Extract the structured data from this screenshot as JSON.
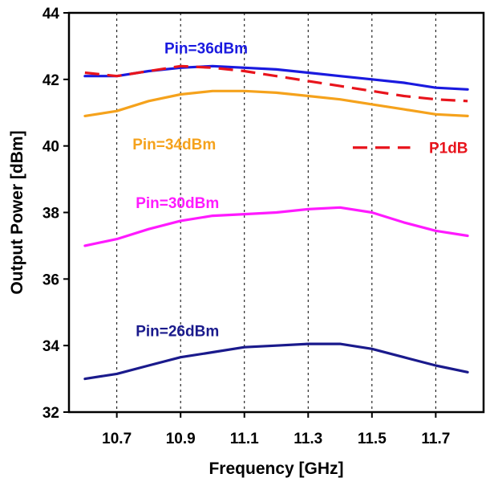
{
  "chart_data": {
    "type": "line",
    "title": "",
    "xlabel": "Frequency [GHz]",
    "ylabel": "Output Power [dBm]",
    "xlim": [
      10.55,
      11.85
    ],
    "ylim": [
      32,
      44
    ],
    "xticks": [
      10.7,
      10.9,
      11.1,
      11.3,
      11.5,
      11.7
    ],
    "xtick_labels": [
      "10.7",
      "10.9",
      "11.1",
      "11.3",
      "11.5",
      "11.7"
    ],
    "yticks": [
      32,
      34,
      36,
      38,
      40,
      42,
      44
    ],
    "ytick_labels": [
      "32",
      "34",
      "36",
      "38",
      "40",
      "42",
      "44"
    ],
    "grid": "vertical dashed",
    "legend": "inline labels",
    "x": [
      10.6,
      10.7,
      10.8,
      10.9,
      11.0,
      11.1,
      11.2,
      11.3,
      11.4,
      11.5,
      11.6,
      11.7,
      11.8
    ],
    "series": [
      {
        "name": "Pin=36dBm",
        "color": "#1a1adf",
        "dash": false,
        "values": [
          42.1,
          42.1,
          42.25,
          42.35,
          42.4,
          42.35,
          42.3,
          42.2,
          42.1,
          42.0,
          41.9,
          41.75,
          41.7
        ]
      },
      {
        "name": "P1dB",
        "color": "#e8141c",
        "dash": true,
        "values": [
          42.2,
          42.1,
          42.25,
          42.4,
          42.35,
          42.25,
          42.1,
          41.95,
          41.8,
          41.65,
          41.5,
          41.4,
          41.35
        ]
      },
      {
        "name": "Pin=34dBm",
        "color": "#f5a21c",
        "dash": false,
        "values": [
          40.9,
          41.05,
          41.35,
          41.55,
          41.65,
          41.65,
          41.6,
          41.5,
          41.4,
          41.25,
          41.1,
          40.95,
          40.9
        ]
      },
      {
        "name": "Pin=30dBm",
        "color": "#ff1aff",
        "dash": false,
        "values": [
          37.0,
          37.2,
          37.5,
          37.75,
          37.9,
          37.95,
          38.0,
          38.1,
          38.15,
          38.0,
          37.7,
          37.45,
          37.3
        ]
      },
      {
        "name": "Pin=26dBm",
        "color": "#1a1a8c",
        "dash": false,
        "values": [
          33.0,
          33.15,
          33.4,
          33.65,
          33.8,
          33.95,
          34.0,
          34.05,
          34.05,
          33.9,
          33.65,
          33.4,
          33.2
        ]
      }
    ],
    "labels": [
      {
        "text": "Pin=36dBm",
        "color": "#1a1adf",
        "x": 10.98,
        "y": 42.95
      },
      {
        "text": "Pin=34dBm",
        "color": "#f5a21c",
        "x": 10.88,
        "y": 40.07
      },
      {
        "text": "Pin=30dBm",
        "color": "#ff1aff",
        "x": 10.89,
        "y": 38.3
      },
      {
        "text": "Pin=26dBm",
        "color": "#1a1a8c",
        "x": 10.89,
        "y": 34.45
      },
      {
        "text": "P1dB",
        "color": "#e8141c",
        "x": 11.74,
        "y": 39.95
      }
    ],
    "legend_dash": {
      "x1": 11.44,
      "x2": 11.62,
      "y": 39.95,
      "color": "#e8141c"
    }
  }
}
